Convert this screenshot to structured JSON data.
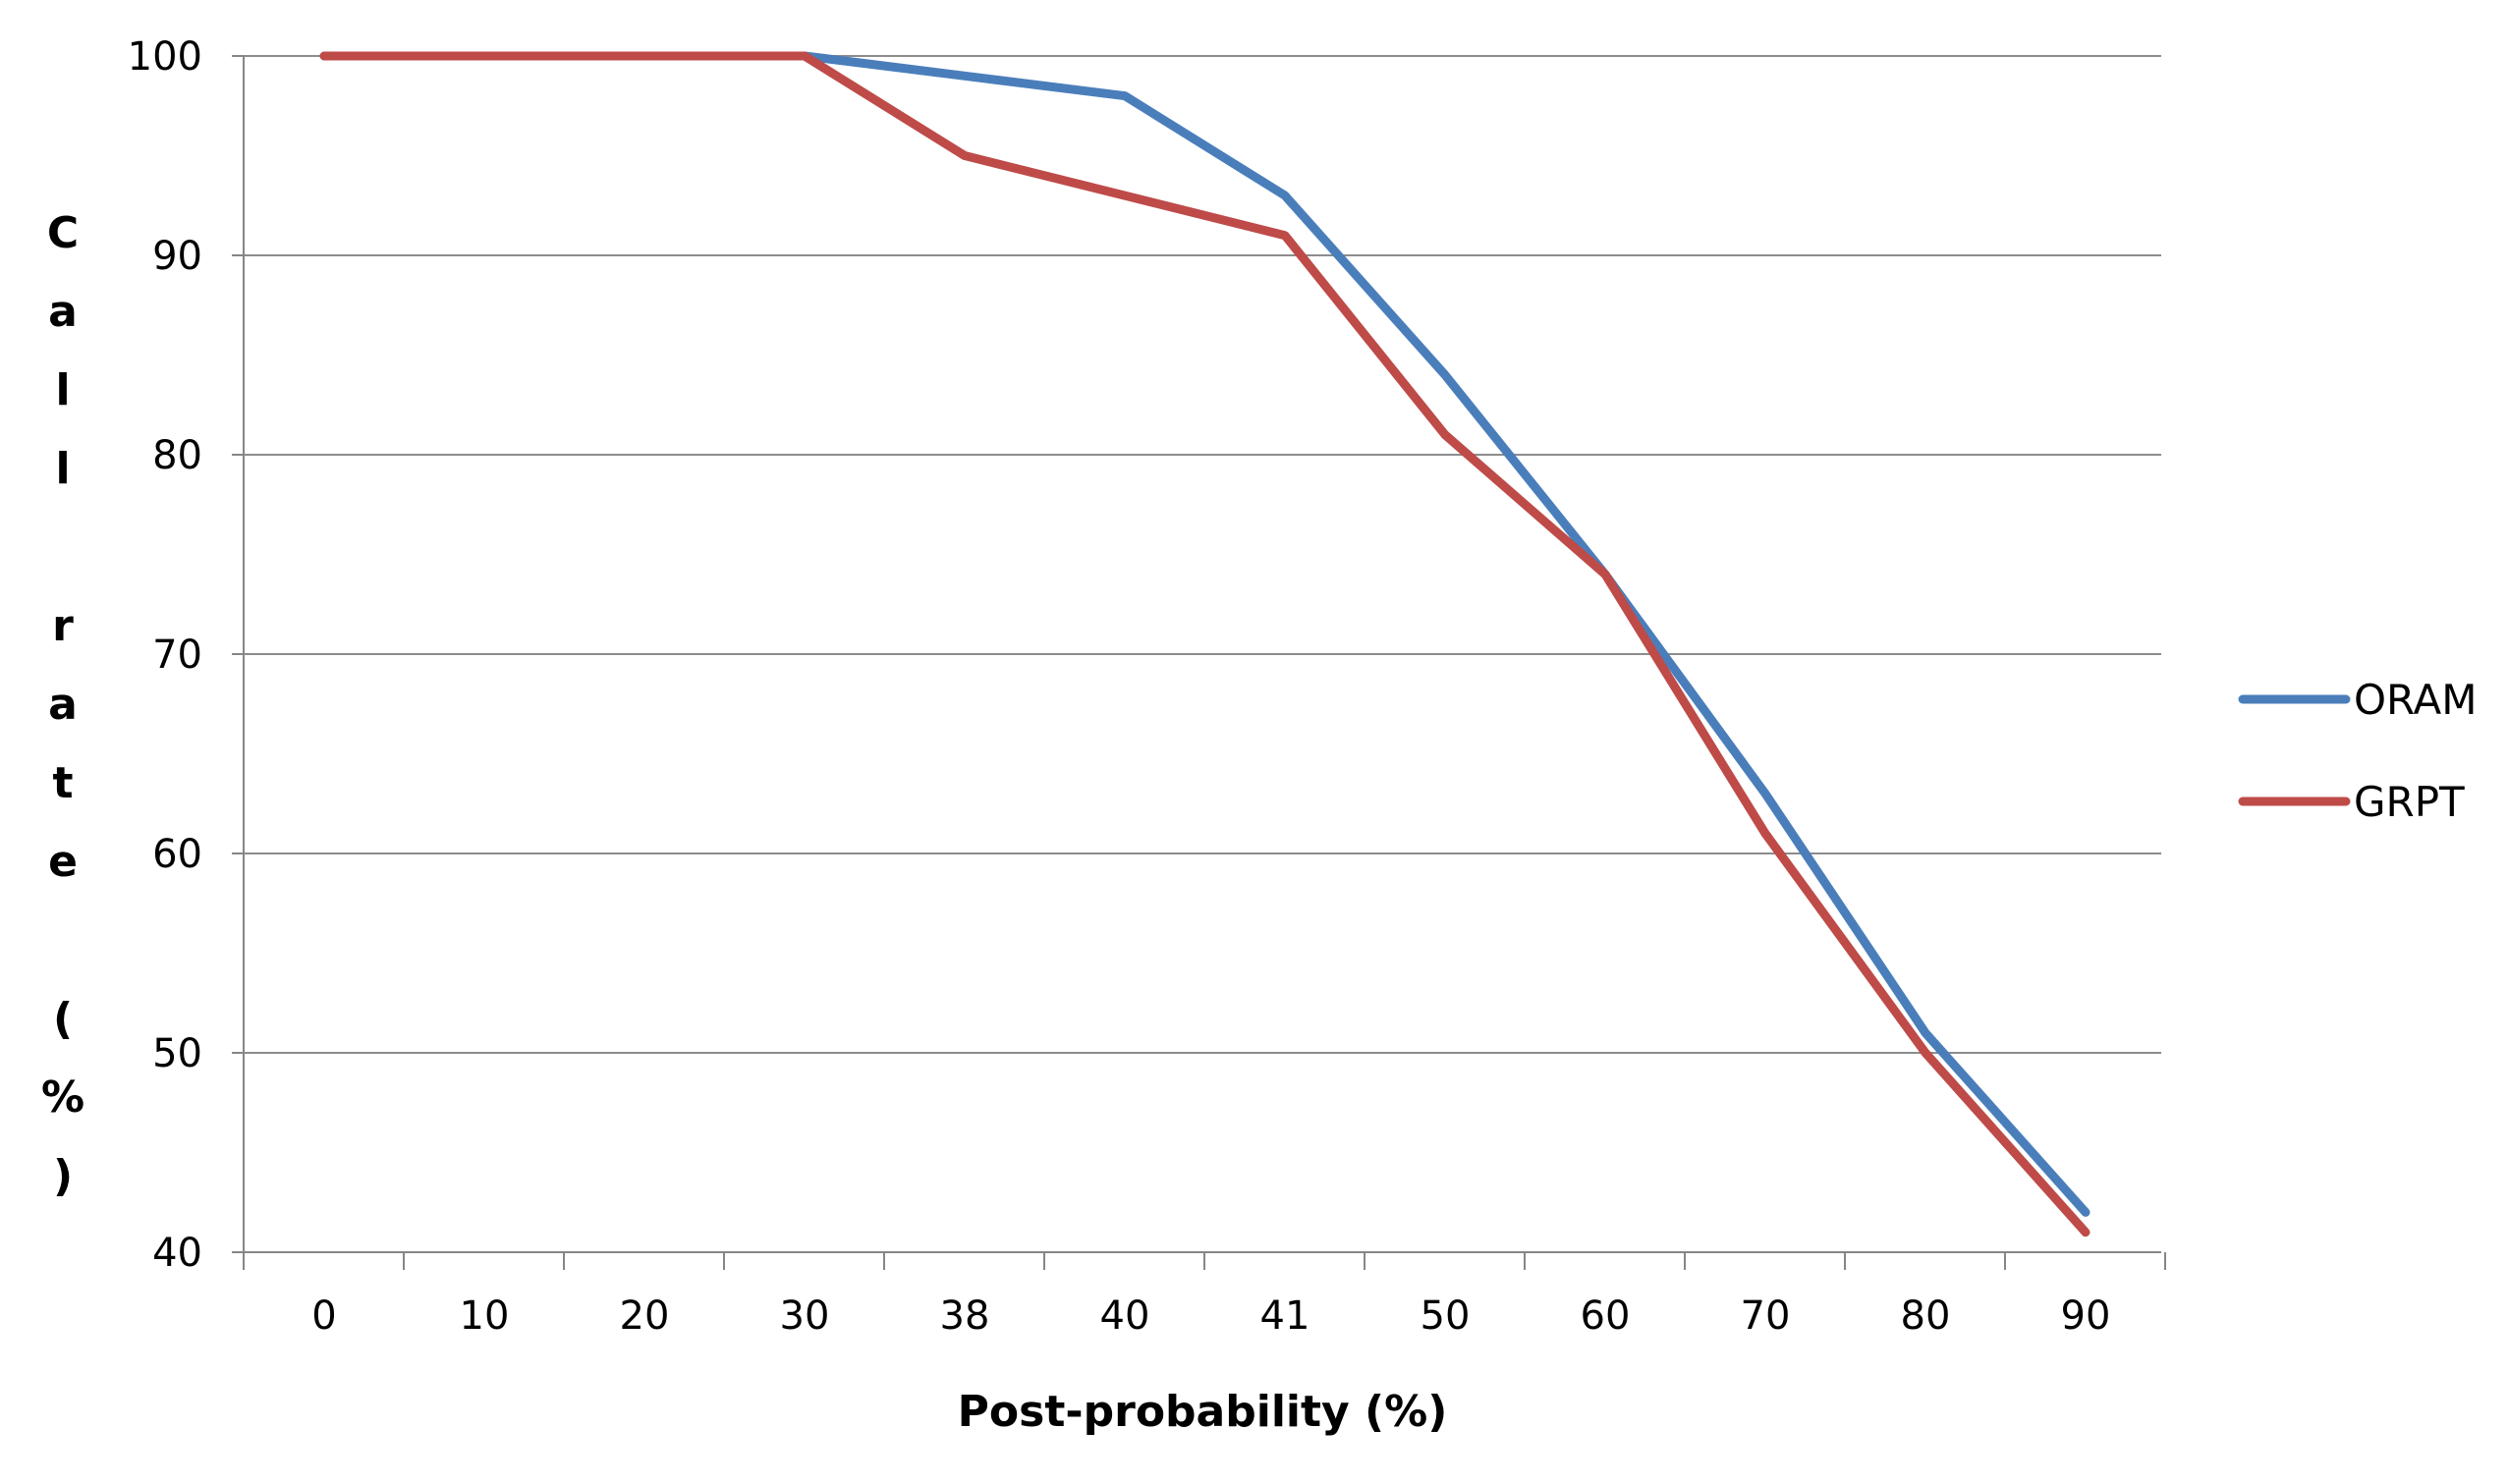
{
  "chart_data": {
    "type": "line",
    "title": "",
    "xlabel": "Post-probability (%)",
    "ylabel": "Call rate (%)",
    "categories": [
      "0",
      "10",
      "20",
      "30",
      "38",
      "40",
      "41",
      "50",
      "60",
      "70",
      "80",
      "90"
    ],
    "ylim": [
      40,
      100
    ],
    "yticks": [
      40,
      50,
      60,
      70,
      80,
      90,
      100
    ],
    "grid": "horizontal",
    "legend_position": "right",
    "series": [
      {
        "name": "ORAM",
        "color": "#4A7EBB",
        "values": [
          100,
          100,
          100,
          100,
          99,
          98,
          93,
          84,
          74,
          63,
          51,
          42
        ]
      },
      {
        "name": "GRPT",
        "color": "#BE4B48",
        "values": [
          100,
          100,
          100,
          100,
          95,
          93,
          91,
          81,
          74,
          61,
          50,
          41
        ]
      }
    ]
  }
}
